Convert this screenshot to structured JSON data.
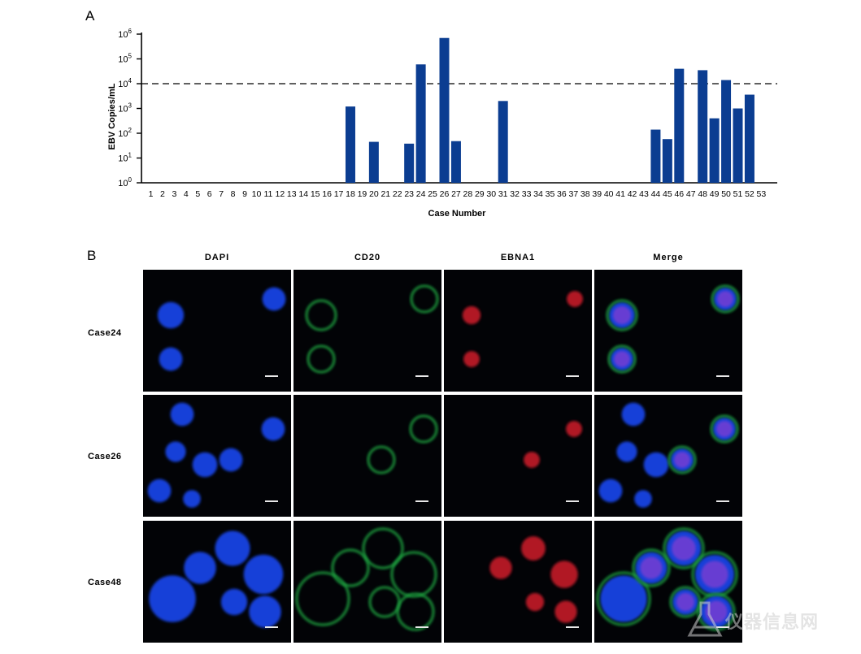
{
  "panel_a_label": "A",
  "panel_b_label": "B",
  "chart_data": {
    "type": "bar",
    "title": "",
    "xlabel": "Case Number",
    "ylabel": "EBV Copies/mL",
    "yscale": "log",
    "ylim": [
      1,
      1000000
    ],
    "y_ticks": [
      {
        "base": "10",
        "exp": "0"
      },
      {
        "base": "10",
        "exp": "1"
      },
      {
        "base": "10",
        "exp": "2"
      },
      {
        "base": "10",
        "exp": "3"
      },
      {
        "base": "10",
        "exp": "4"
      },
      {
        "base": "10",
        "exp": "5"
      },
      {
        "base": "10",
        "exp": "6"
      }
    ],
    "threshold": 10000,
    "threshold_style": "dashed",
    "bar_color": "#0b3d91",
    "categories": [
      "1",
      "2",
      "3",
      "4",
      "5",
      "6",
      "7",
      "8",
      "9",
      "10",
      "11",
      "12",
      "13",
      "14",
      "15",
      "16",
      "17",
      "18",
      "19",
      "20",
      "21",
      "22",
      "23",
      "24",
      "25",
      "26",
      "27",
      "28",
      "29",
      "30",
      "31",
      "32",
      "33",
      "34",
      "35",
      "36",
      "37",
      "38",
      "39",
      "40",
      "41",
      "42",
      "43",
      "44",
      "45",
      "46",
      "47",
      "48",
      "49",
      "50",
      "51",
      "52",
      "53"
    ],
    "values": [
      1,
      1,
      1,
      1,
      1,
      1,
      1,
      1,
      1,
      1,
      1,
      1,
      1,
      1,
      1,
      1,
      1,
      1200,
      1,
      45,
      1,
      1,
      38,
      60000,
      1,
      700000,
      48,
      1,
      1,
      1,
      2000,
      1,
      1,
      1,
      1,
      1,
      1,
      1,
      1,
      1,
      1,
      1,
      1,
      140,
      58,
      40000,
      1,
      35000,
      400,
      14000,
      1000,
      3600,
      1
    ]
  },
  "panel_b": {
    "columns": [
      "DAPI",
      "CD20",
      "EBNA1",
      "Merge"
    ],
    "rows": [
      "Case24",
      "Case26",
      "Case48"
    ],
    "channel_colors": {
      "DAPI": "#1740d8",
      "CD20": "#1fa340",
      "EBNA1": "#d01c2a"
    }
  },
  "watermark": {
    "text": "仪器信息网",
    "icon": "beaker-logo-icon"
  }
}
